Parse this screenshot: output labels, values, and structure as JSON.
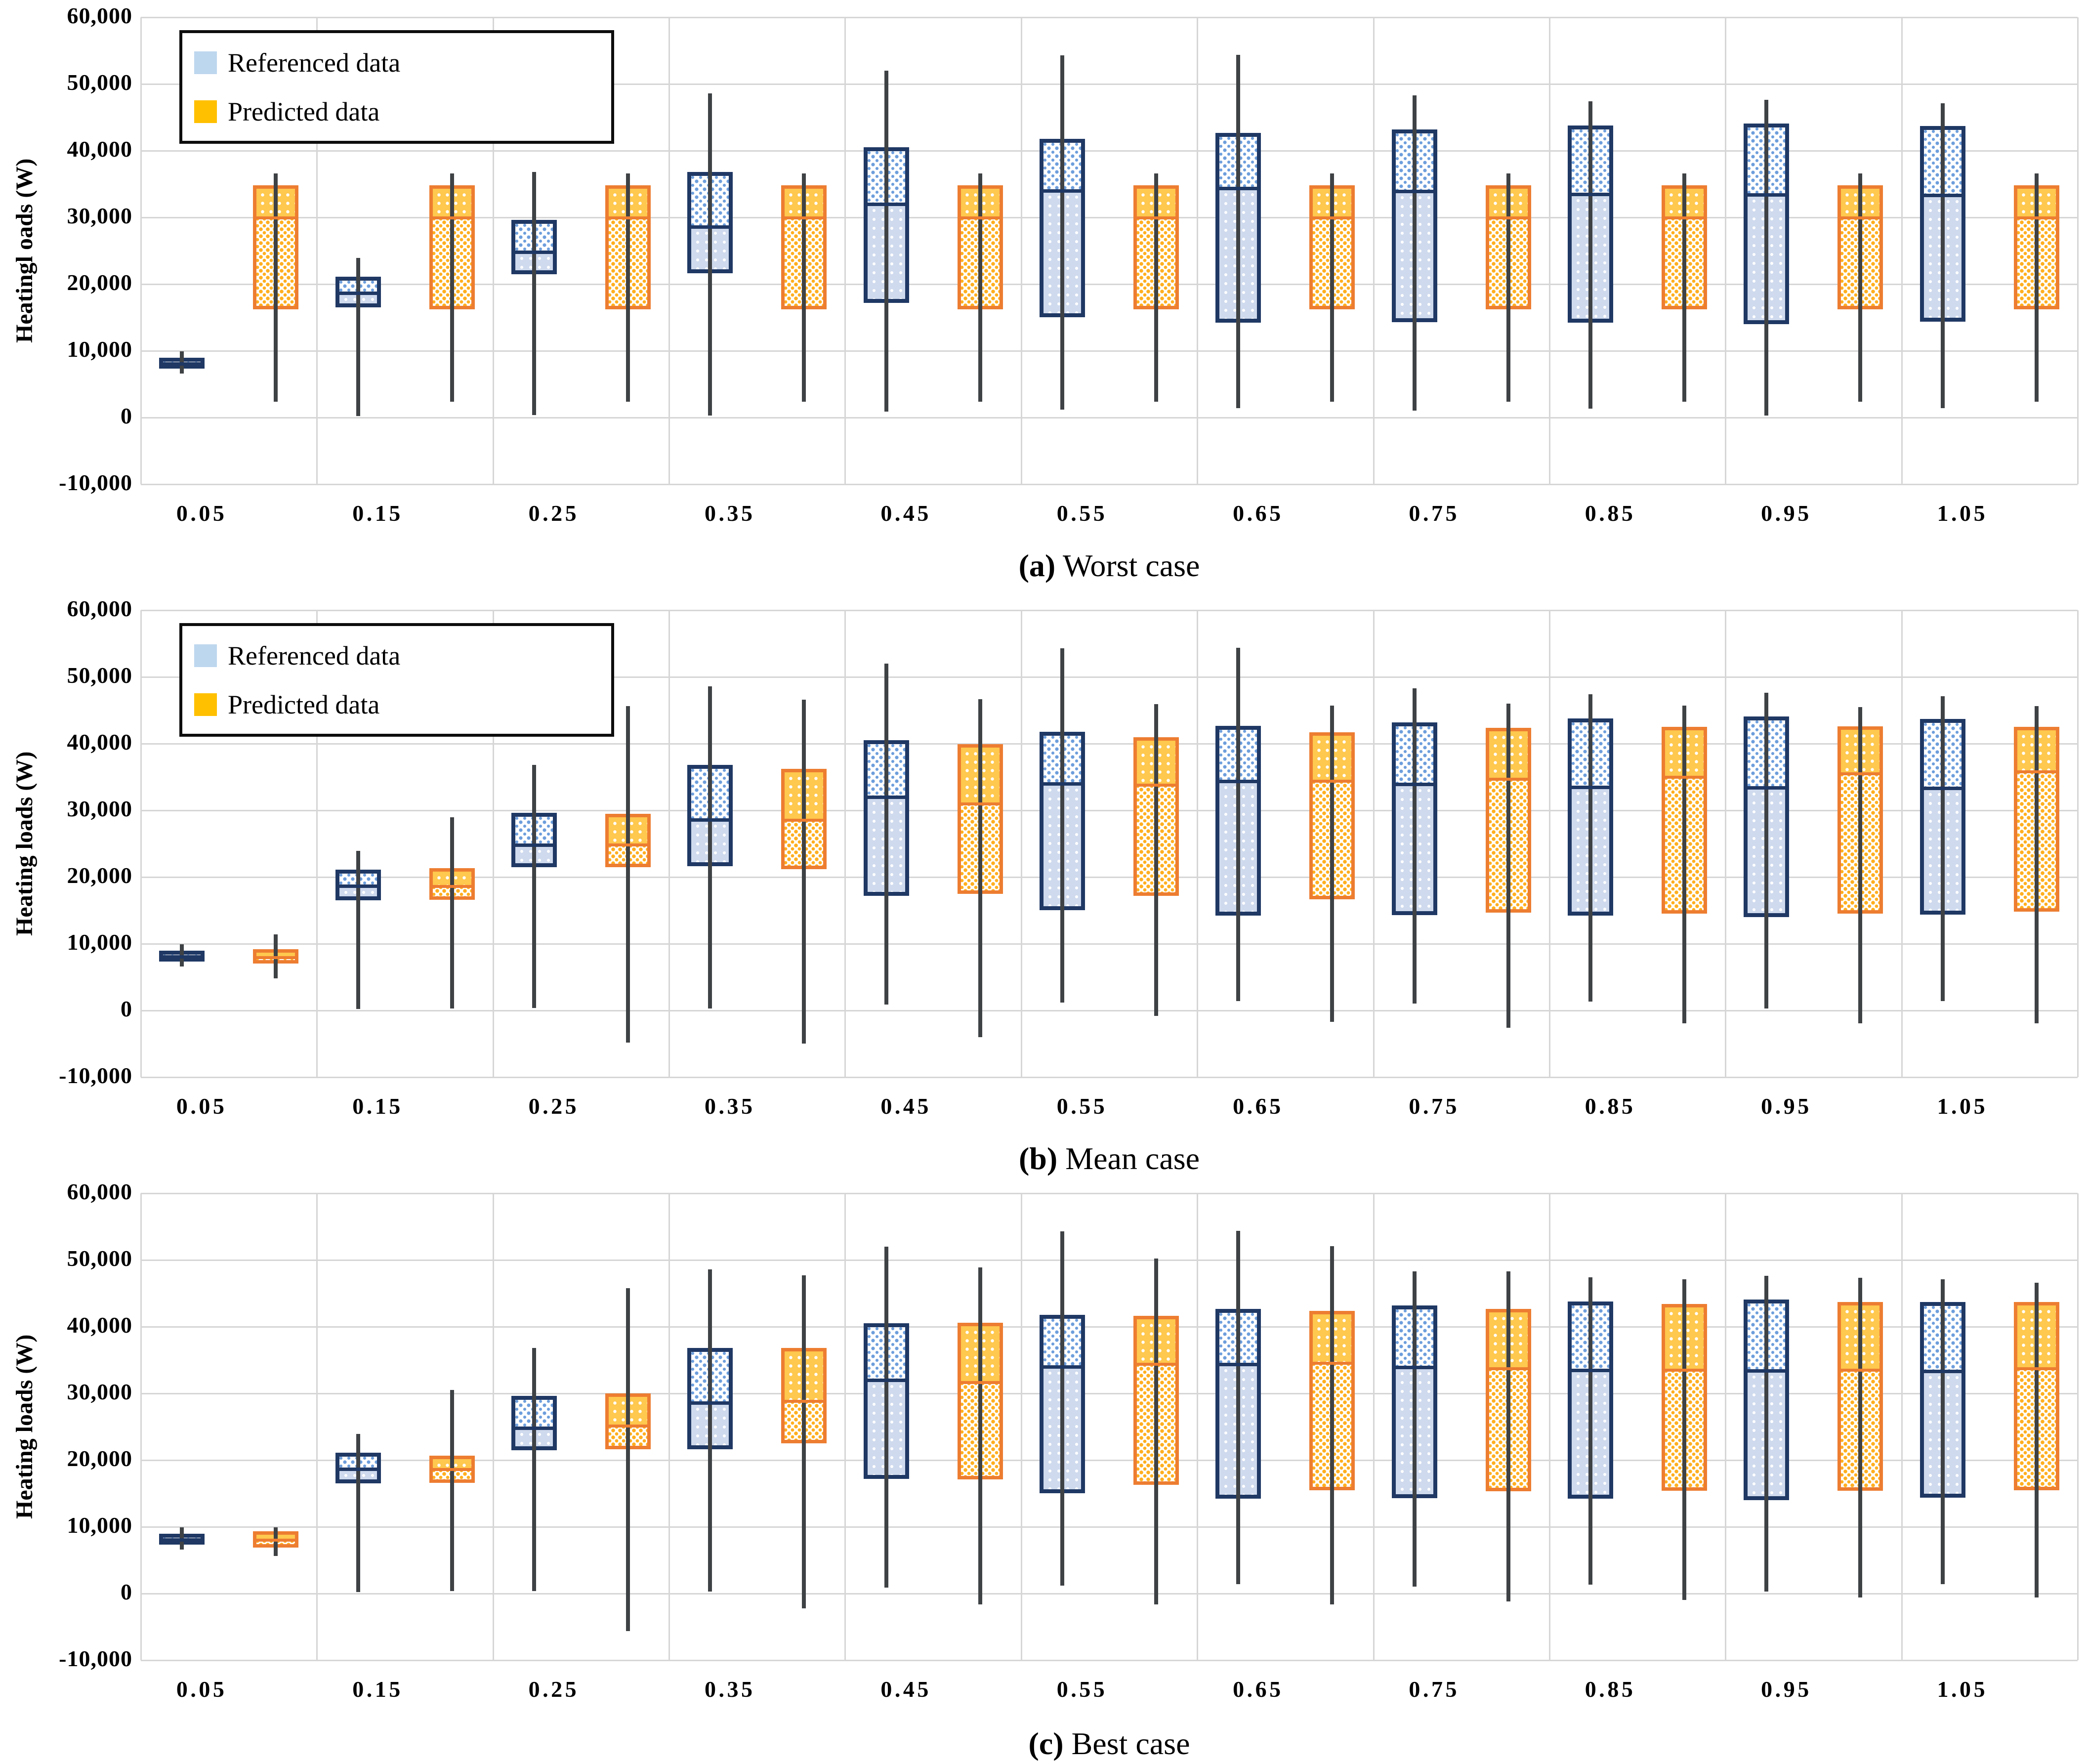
{
  "figure": {
    "description": "Three stacked box-and-whisker charts comparing referenced and predicted heating loads",
    "panels": 3
  },
  "legend": {
    "items": [
      {
        "label": "Referenced data",
        "swatch": "light-blue-square"
      },
      {
        "label": "Predicted data",
        "swatch": "gold-square"
      }
    ]
  },
  "y_axis": {
    "max": 60000,
    "min": -10000,
    "tick_values": [
      60000,
      50000,
      40000,
      30000,
      20000,
      10000,
      0,
      -10000
    ],
    "tick_labels": [
      "60,000",
      "50,000",
      "40,000",
      "30,000",
      "20,000",
      "10,000",
      "0",
      "-10,000"
    ]
  },
  "x_axis": {
    "categories": [
      "0.05",
      "0.15",
      "0.25",
      "0.35",
      "0.45",
      "0.55",
      "0.65",
      "0.75",
      "0.85",
      "0.95",
      "1.05"
    ]
  },
  "colors": {
    "referenced_border": "#1F3864",
    "referenced_fill": "#CFDAEE",
    "referenced_dot": "#6D9EDC",
    "predicted_border": "#ED7D31",
    "predicted_fill_upper": "#FFC84E",
    "predicted_dot": "#FFAF1F",
    "legend_referenced_swatch": "#BDD7EE",
    "legend_predicted_swatch": "#FFC000",
    "whisker": "#3F4245",
    "gridline": "#D6D6D6",
    "text": "#000000",
    "background": "#FFFFFF"
  },
  "box_stat_order": [
    "min",
    "q1",
    "median",
    "q3",
    "max"
  ],
  "chart_data": [
    {
      "type": "boxplot",
      "caption_prefix": "(a)",
      "caption_rest": " Worst case",
      "ylabel": "Heatingl oads (W)",
      "has_legend": true,
      "ylim": [
        -10000,
        60000
      ],
      "series": [
        {
          "name": "Referenced data",
          "box_stats": [
            [
              6600,
              7300,
              8100,
              9000,
              9900
            ],
            [
              200,
              16500,
              18700,
              21100,
              23900
            ],
            [
              400,
              21500,
              24800,
              29600,
              36800
            ],
            [
              300,
              21600,
              28600,
              36800,
              48600
            ],
            [
              900,
              17200,
              32000,
              40500,
              52000
            ],
            [
              1200,
              15000,
              34000,
              41800,
              54300
            ],
            [
              1400,
              14200,
              34400,
              42700,
              54400
            ],
            [
              1000,
              14300,
              33900,
              43200,
              48300
            ],
            [
              1300,
              14200,
              33500,
              43800,
              47400
            ],
            [
              300,
              14000,
              33400,
              44100,
              47600
            ],
            [
              1400,
              14400,
              33300,
              43700,
              47100
            ]
          ]
        },
        {
          "name": "Predicted data",
          "box_stats": [
            [
              2400,
              16200,
              29900,
              34800,
              36600
            ],
            [
              2400,
              16200,
              29900,
              34800,
              36600
            ],
            [
              2400,
              16200,
              29900,
              34800,
              36600
            ],
            [
              2400,
              16200,
              29900,
              34800,
              36600
            ],
            [
              2400,
              16200,
              29900,
              34800,
              36600
            ],
            [
              2400,
              16200,
              29900,
              34800,
              36600
            ],
            [
              2400,
              16200,
              29900,
              34800,
              36600
            ],
            [
              2400,
              16200,
              29900,
              34800,
              36600
            ],
            [
              2400,
              16200,
              29900,
              34800,
              36600
            ],
            [
              2400,
              16200,
              29900,
              34800,
              36600
            ],
            [
              2400,
              16200,
              29900,
              34800,
              36600
            ]
          ]
        }
      ]
    },
    {
      "type": "boxplot",
      "caption_prefix": "(b)",
      "caption_rest": " Mean case",
      "ylabel": "Heating loads (W)",
      "has_legend": true,
      "ylim": [
        -10000,
        60000
      ],
      "series": [
        {
          "name": "Referenced data",
          "box_stats": [
            [
              6600,
              7300,
              8100,
              9000,
              9900
            ],
            [
              200,
              16500,
              18700,
              21100,
              23900
            ],
            [
              400,
              21500,
              24800,
              29600,
              36800
            ],
            [
              300,
              21600,
              28600,
              36800,
              48600
            ],
            [
              900,
              17200,
              32000,
              40500,
              52000
            ],
            [
              1200,
              15000,
              34000,
              41800,
              54300
            ],
            [
              1400,
              14200,
              34400,
              42700,
              54400
            ],
            [
              1000,
              14300,
              33900,
              43200,
              48300
            ],
            [
              1300,
              14200,
              33500,
              43800,
              47400
            ],
            [
              300,
              14000,
              33400,
              44100,
              47600
            ],
            [
              1400,
              14400,
              33300,
              43700,
              47100
            ]
          ]
        },
        {
          "name": "Predicted data",
          "box_stats": [
            [
              4800,
              7000,
              7900,
              9200,
              11400
            ],
            [
              300,
              16600,
              18600,
              21300,
              29000
            ],
            [
              -4800,
              21500,
              24800,
              29500,
              45600
            ],
            [
              -5000,
              21200,
              28500,
              36200,
              46600
            ],
            [
              -4000,
              17500,
              31000,
              39900,
              46700
            ],
            [
              -800,
              17200,
              33800,
              41000,
              45900
            ],
            [
              -1700,
              16700,
              34400,
              41700,
              45700
            ],
            [
              -2600,
              14700,
              34700,
              42400,
              46000
            ],
            [
              -1900,
              14500,
              35000,
              42500,
              45700
            ],
            [
              -1900,
              14500,
              35500,
              42600,
              45500
            ],
            [
              -1900,
              14800,
              35800,
              42500,
              45600
            ]
          ]
        }
      ]
    },
    {
      "type": "boxplot",
      "caption_prefix": "(c)",
      "caption_rest": " Best case",
      "ylabel": "Heating loads (W)",
      "has_legend": false,
      "ylim": [
        -10000,
        60000
      ],
      "series": [
        {
          "name": "Referenced data",
          "box_stats": [
            [
              6600,
              7300,
              8100,
              9000,
              9900
            ],
            [
              200,
              16500,
              18700,
              21100,
              23900
            ],
            [
              400,
              21500,
              24800,
              29600,
              36800
            ],
            [
              300,
              21600,
              28600,
              36800,
              48600
            ],
            [
              900,
              17200,
              32000,
              40500,
              52000
            ],
            [
              1200,
              15000,
              34000,
              41800,
              54300
            ],
            [
              1400,
              14200,
              34400,
              42700,
              54400
            ],
            [
              1000,
              14300,
              33900,
              43200,
              48300
            ],
            [
              1300,
              14200,
              33500,
              43800,
              47400
            ],
            [
              300,
              14000,
              33400,
              44100,
              47600
            ],
            [
              1400,
              14400,
              33300,
              43700,
              47100
            ]
          ]
        },
        {
          "name": "Predicted data",
          "box_stats": [
            [
              5600,
              6900,
              8000,
              9300,
              9900
            ],
            [
              400,
              16600,
              18600,
              20700,
              30500
            ],
            [
              -5600,
              21600,
              25100,
              30000,
              45800
            ],
            [
              -2200,
              22500,
              28800,
              36800,
              47700
            ],
            [
              -1600,
              17100,
              31600,
              40600,
              48900
            ],
            [
              -1600,
              16300,
              34400,
              41600,
              50200
            ],
            [
              -1600,
              15500,
              34500,
              42400,
              52100
            ],
            [
              -1200,
              15300,
              33700,
              42700,
              48300
            ],
            [
              -1000,
              15400,
              33500,
              43400,
              47100
            ],
            [
              -600,
              15400,
              33500,
              43700,
              47300
            ],
            [
              -600,
              15500,
              33700,
              43700,
              46600
            ]
          ]
        }
      ]
    }
  ]
}
